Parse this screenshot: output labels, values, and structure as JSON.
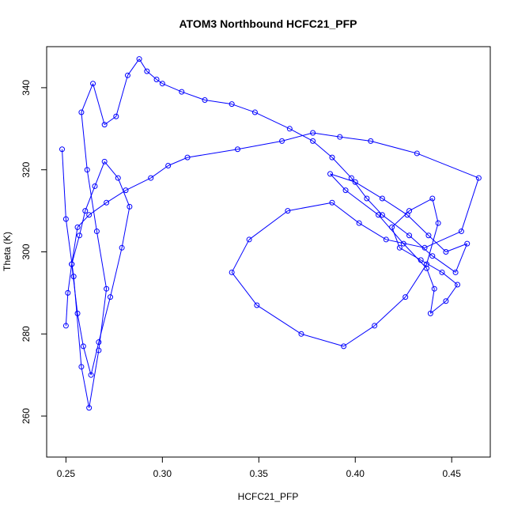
{
  "chart_data": {
    "type": "line",
    "title": "ATOM3 Northbound HCFC21_PFP",
    "xlabel": "HCFC21_PFP",
    "ylabel": "Theta (K)",
    "xlim": [
      0.24,
      0.47
    ],
    "ylim": [
      250,
      350
    ],
    "x_ticks": [
      0.25,
      0.3,
      0.35,
      0.4,
      0.45
    ],
    "x_tick_labels": [
      "0.25",
      "0.30",
      "0.35",
      "0.40",
      "0.45"
    ],
    "y_ticks": [
      260,
      280,
      300,
      320,
      340
    ],
    "y_tick_labels": [
      "260",
      "280",
      "300",
      "320",
      "340"
    ],
    "grid": false,
    "markers": "open-circle",
    "colors": {
      "series": "#0000ff",
      "axes": "#000000",
      "background": "#ffffff"
    },
    "series": [
      {
        "x": [
          0.248,
          0.25,
          0.254,
          0.258,
          0.262,
          0.267,
          0.271,
          0.266,
          0.261,
          0.258,
          0.264,
          0.27,
          0.276,
          0.282,
          0.288,
          0.292,
          0.297,
          0.3,
          0.31,
          0.322,
          0.336,
          0.348,
          0.366,
          0.378,
          0.388,
          0.398,
          0.406,
          0.414,
          0.428,
          0.44,
          0.452,
          0.458,
          0.447,
          0.438,
          0.427,
          0.414,
          0.4,
          0.387,
          0.395,
          0.412,
          0.425,
          0.437,
          0.441,
          0.439,
          0.447,
          0.453,
          0.445,
          0.434,
          0.423,
          0.419,
          0.428,
          0.44,
          0.443,
          0.437,
          0.426,
          0.41,
          0.394,
          0.372,
          0.349,
          0.336,
          0.345,
          0.365,
          0.388,
          0.402,
          0.416,
          0.436,
          0.455,
          0.464,
          0.432,
          0.408,
          0.392,
          0.378,
          0.362,
          0.339,
          0.313,
          0.303,
          0.294,
          0.281,
          0.271,
          0.262,
          0.256,
          0.253,
          0.256,
          0.259,
          0.263,
          0.267,
          0.273,
          0.279,
          0.283,
          0.277,
          0.27,
          0.265,
          0.26,
          0.257,
          0.253,
          0.251,
          0.25
        ],
        "y": [
          325,
          308,
          294,
          272,
          262,
          276,
          291,
          305,
          320,
          334,
          341,
          331,
          333,
          343,
          347,
          344,
          342,
          341,
          339,
          337,
          336,
          334,
          330,
          327,
          323,
          318,
          313,
          309,
          304,
          299,
          295,
          302,
          300,
          304,
          309,
          313,
          317,
          319,
          315,
          309,
          302,
          296,
          291,
          285,
          288,
          292,
          295,
          298,
          301,
          306,
          310,
          313,
          307,
          297,
          289,
          282,
          277,
          280,
          287,
          295,
          303,
          310,
          312,
          307,
          303,
          301,
          305,
          318,
          324,
          327,
          328,
          329,
          327,
          325,
          323,
          321,
          318,
          315,
          312,
          309,
          306,
          297,
          285,
          277,
          270,
          278,
          289,
          301,
          311,
          318,
          322,
          316,
          310,
          304,
          297,
          290,
          282
        ]
      }
    ]
  }
}
